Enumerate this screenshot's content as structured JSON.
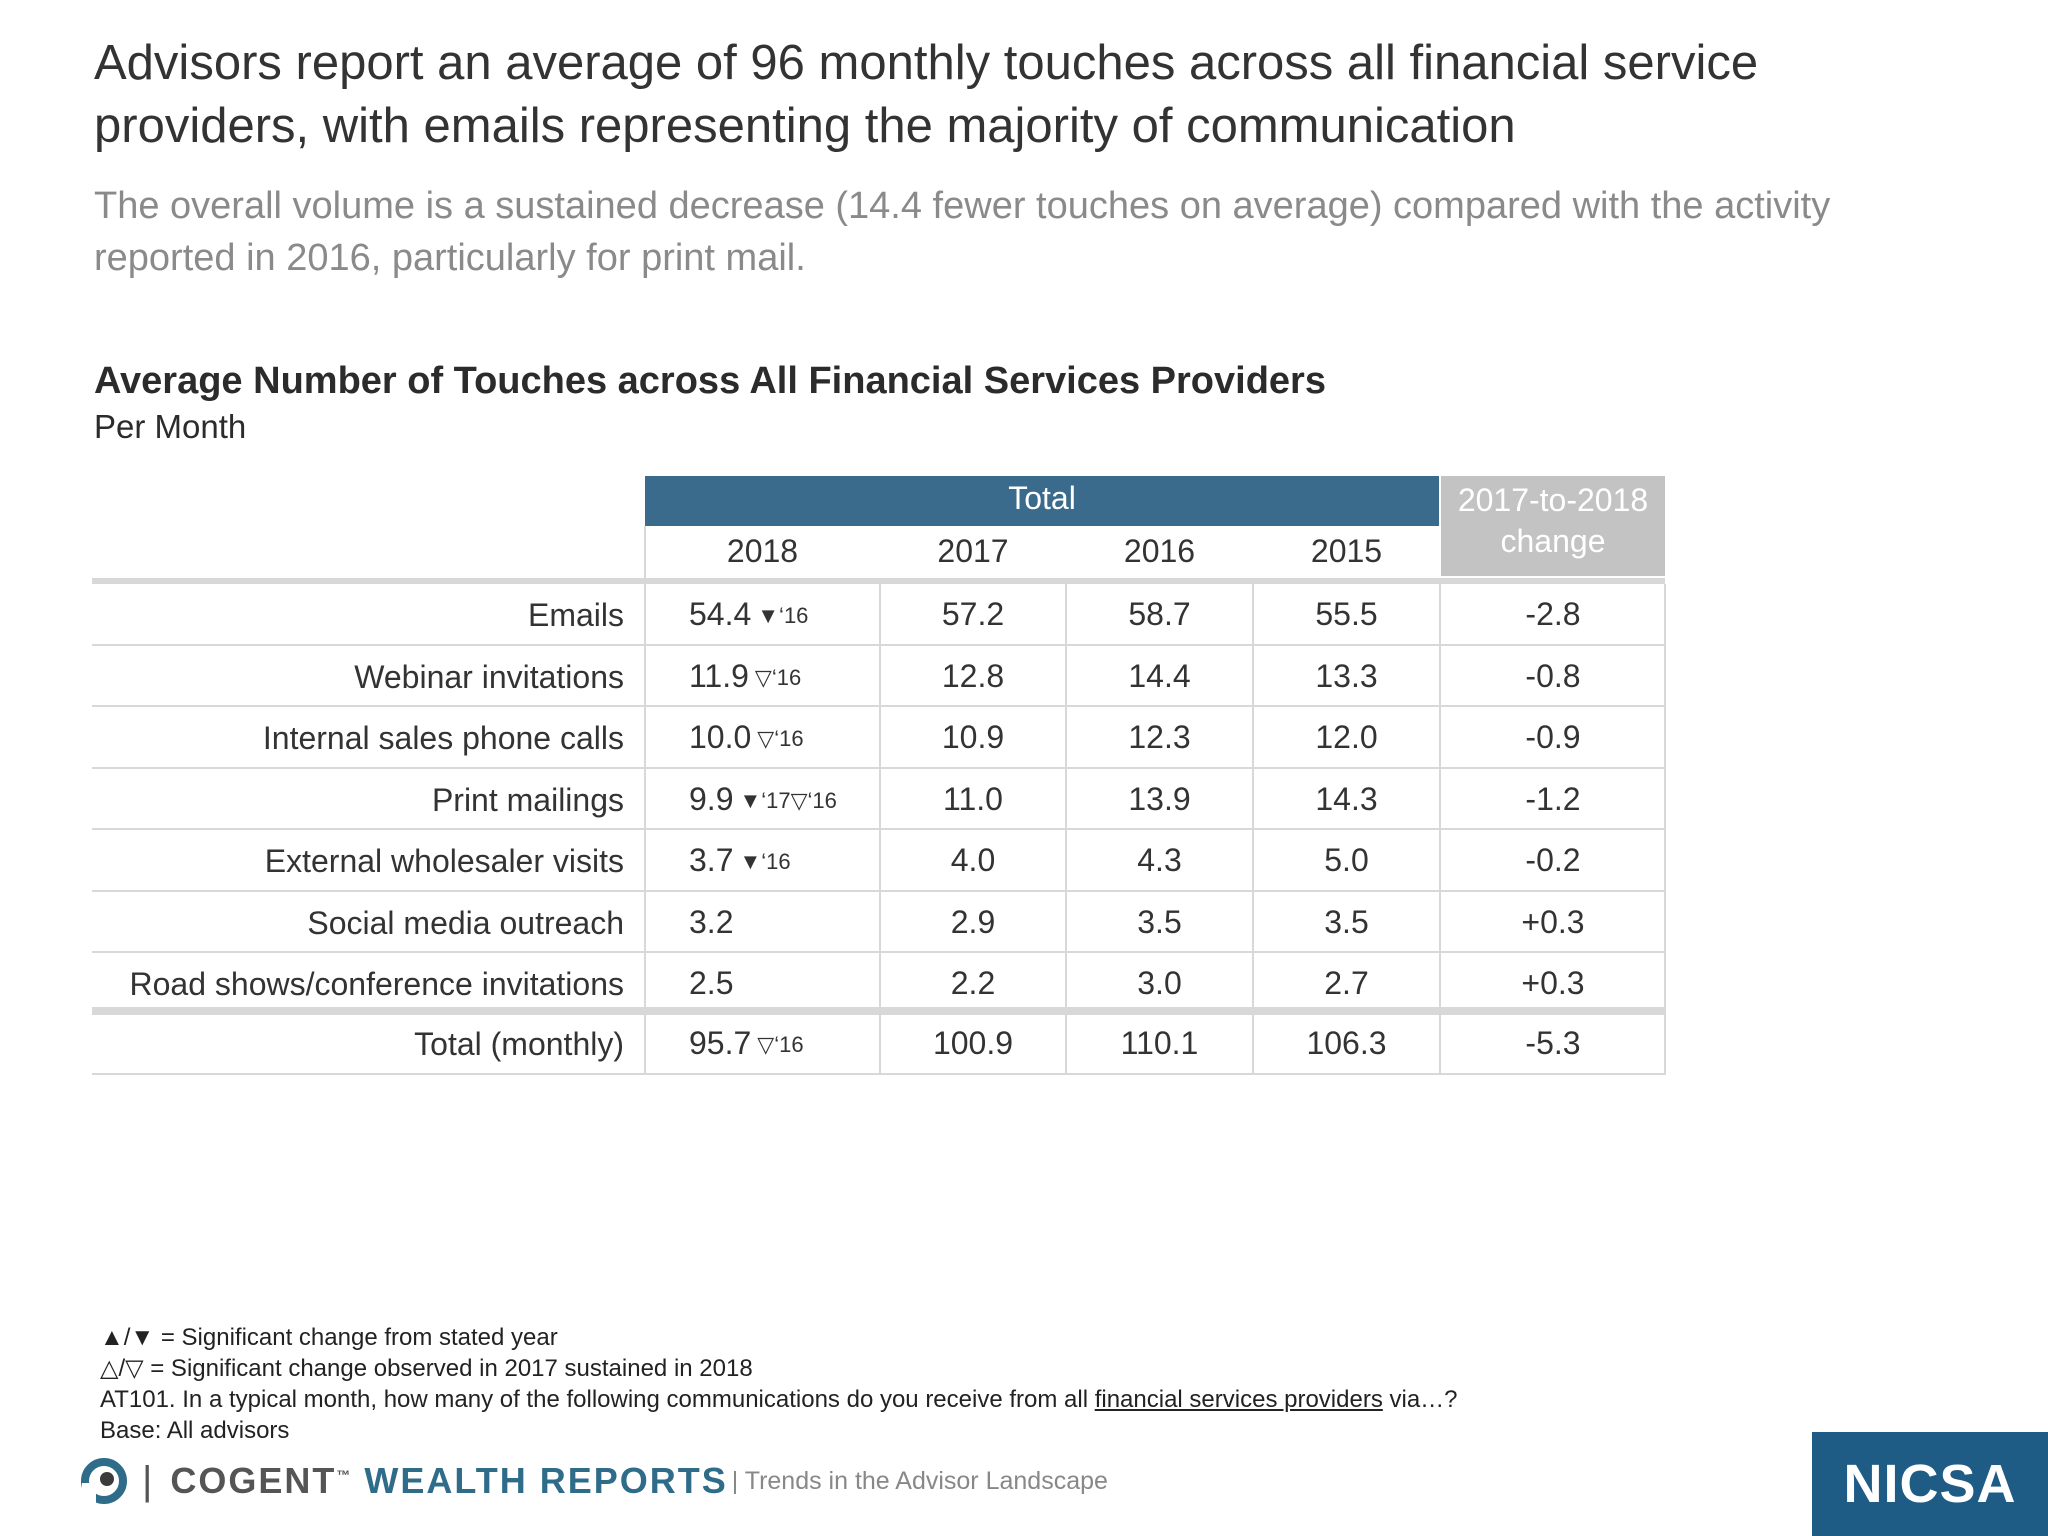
{
  "title": "Advisors report an average of 96 monthly touches across all financial service providers, with emails representing the majority of communication",
  "subtitle": "The overall volume is a sustained decrease (14.4 fewer touches on average) compared with the activity reported in 2016, particularly for print mail.",
  "table": {
    "title": "Average Number of Touches across All Financial Services Providers",
    "subtitle": "Per Month",
    "group_header": "Total",
    "change_header_1": "2017-to-2018",
    "change_header_2": "change",
    "years": [
      "2018",
      "2017",
      "2016",
      "2015"
    ],
    "rows": [
      {
        "label": "Emails",
        "v2018": "54.4",
        "sig": "▼‘16",
        "v2017": "57.2",
        "v2016": "58.7",
        "v2015": "55.5",
        "change": "-2.8"
      },
      {
        "label": "Webinar invitations",
        "v2018": "11.9",
        "sig": "▽‘16",
        "v2017": "12.8",
        "v2016": "14.4",
        "v2015": "13.3",
        "change": "-0.8"
      },
      {
        "label": "Internal sales phone calls",
        "v2018": "10.0",
        "sig": "▽‘16",
        "v2017": "10.9",
        "v2016": "12.3",
        "v2015": "12.0",
        "change": "-0.9"
      },
      {
        "label": "Print mailings",
        "v2018": "9.9",
        "sig": "▼‘17▽‘16",
        "v2017": "11.0",
        "v2016": "13.9",
        "v2015": "14.3",
        "change": "-1.2"
      },
      {
        "label": "External wholesaler visits",
        "v2018": "3.7",
        "sig": "▼‘16",
        "v2017": "4.0",
        "v2016": "4.3",
        "v2015": "5.0",
        "change": "-0.2"
      },
      {
        "label": "Social media outreach",
        "v2018": "3.2",
        "sig": "",
        "v2017": "2.9",
        "v2016": "3.5",
        "v2015": "3.5",
        "change": "+0.3"
      },
      {
        "label": "Road shows/conference invitations",
        "v2018": "2.5",
        "sig": "",
        "v2017": "2.2",
        "v2016": "3.0",
        "v2015": "2.7",
        "change": "+0.3"
      }
    ],
    "total": {
      "label": "Total (monthly)",
      "v2018": "95.7",
      "sig": "▽‘16",
      "v2017": "100.9",
      "v2016": "110.1",
      "v2015": "106.3",
      "change": "-5.3"
    }
  },
  "notes": {
    "line1": "▲/▼ = Significant change from stated year",
    "line2": "△/▽ = Significant change observed in 2017 sustained in 2018",
    "line3_prefix": "AT101. In a typical month, how many of the following communications do you receive from all ",
    "line3_link": "financial services providers",
    "line3_suffix": " via…?",
    "line4": "Base: All advisors"
  },
  "footer": {
    "brand_a": "COGENT",
    "brand_tm": "™",
    "brand_b": " WEALTH REPORTS",
    "tagline": "| Trends in the Advisor Landscape",
    "nicsa": "NICSA"
  },
  "colors": {
    "header_blue": "#3a6b8c",
    "change_gray": "#c3c3c3",
    "nicsa_blue": "#1e5c86"
  }
}
